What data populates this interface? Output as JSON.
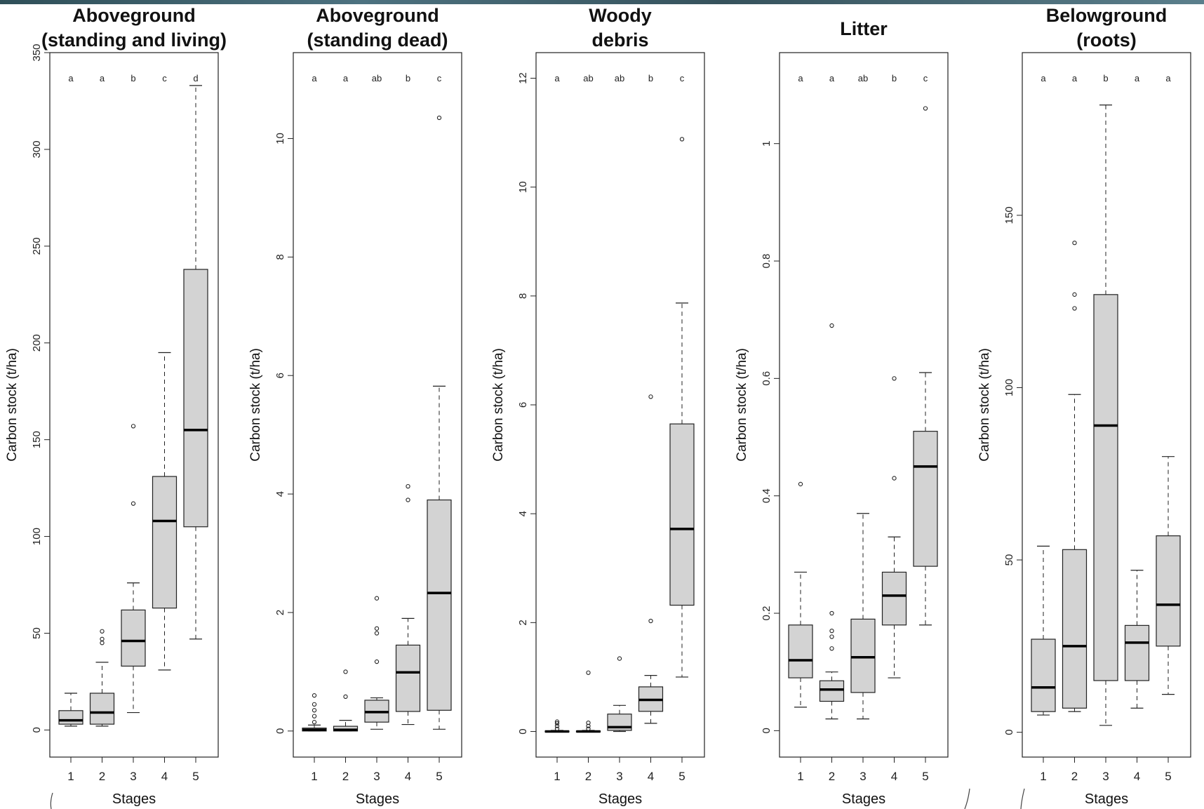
{
  "chart_data": [
    {
      "type": "box",
      "title": "Aboveground\n(standing and living)",
      "xlabel": "Stages",
      "ylabel": "Carbon stock (t/ha)",
      "categories": [
        "1",
        "2",
        "3",
        "4",
        "5"
      ],
      "ylim": [
        -14,
        350
      ],
      "yticks": [
        0,
        50,
        100,
        150,
        200,
        250,
        300,
        350
      ],
      "group_letters": [
        "a",
        "a",
        "b",
        "c",
        "d"
      ],
      "boxes": [
        {
          "whisker_low": 2,
          "q1": 3,
          "median": 5,
          "q3": 10,
          "whisker_high": 19,
          "outliers": []
        },
        {
          "whisker_low": 2,
          "q1": 3,
          "median": 9,
          "q3": 19,
          "whisker_high": 35,
          "outliers": [
            45,
            47,
            51
          ]
        },
        {
          "whisker_low": 9,
          "q1": 33,
          "median": 46,
          "q3": 62,
          "whisker_high": 76,
          "outliers": [
            117,
            157
          ]
        },
        {
          "whisker_low": 31,
          "q1": 63,
          "median": 108,
          "q3": 131,
          "whisker_high": 195,
          "outliers": []
        },
        {
          "whisker_low": 47,
          "q1": 105,
          "median": 155,
          "q3": 238,
          "whisker_high": 333,
          "outliers": []
        }
      ]
    },
    {
      "type": "box",
      "title": "Aboveground\n(standing dead)",
      "xlabel": "Stages",
      "ylabel": "Carbon stock (t/ha)",
      "categories": [
        "1",
        "2",
        "3",
        "4",
        "5"
      ],
      "ylim": [
        -0.44,
        11.45
      ],
      "yticks": [
        0,
        2,
        4,
        6,
        8,
        10
      ],
      "group_letters": [
        "a",
        "a",
        "ab",
        "b",
        "c"
      ],
      "boxes": [
        {
          "whisker_low": 0,
          "q1": 0.0,
          "median": 0.02,
          "q3": 0.05,
          "whisker_high": 0.1,
          "outliers": [
            0.15,
            0.25,
            0.35,
            0.45,
            0.6
          ]
        },
        {
          "whisker_low": 0,
          "q1": 0.0,
          "median": 0.02,
          "q3": 0.08,
          "whisker_high": 0.18,
          "outliers": [
            0.58,
            1.0
          ]
        },
        {
          "whisker_low": 0.03,
          "q1": 0.15,
          "median": 0.32,
          "q3": 0.52,
          "whisker_high": 0.56,
          "outliers": [
            1.17,
            1.65,
            1.73,
            2.24
          ]
        },
        {
          "whisker_low": 0.11,
          "q1": 0.33,
          "median": 0.99,
          "q3": 1.45,
          "whisker_high": 1.9,
          "outliers": [
            3.9,
            4.13
          ]
        },
        {
          "whisker_low": 0.03,
          "q1": 0.35,
          "median": 2.33,
          "q3": 3.9,
          "whisker_high": 5.82,
          "outliers": [
            10.35
          ]
        }
      ]
    },
    {
      "type": "box",
      "title": "Woody\ndebris",
      "xlabel": "Stages",
      "ylabel": "Carbon stock (t/ha)",
      "categories": [
        "1",
        "2",
        "3",
        "4",
        "5"
      ],
      "ylim": [
        -0.47,
        12.47
      ],
      "yticks": [
        0,
        2,
        4,
        6,
        8,
        10,
        12
      ],
      "group_letters": [
        "a",
        "ab",
        "ab",
        "b",
        "c"
      ],
      "boxes": [
        {
          "whisker_low": 0,
          "q1": 0.0,
          "median": 0.0,
          "q3": 0.01,
          "whisker_high": 0.02,
          "outliers": [
            0.05,
            0.1,
            0.15,
            0.18
          ]
        },
        {
          "whisker_low": 0,
          "q1": 0.0,
          "median": 0.0,
          "q3": 0.01,
          "whisker_high": 0.02,
          "outliers": [
            0.05,
            0.1,
            0.16,
            1.08
          ]
        },
        {
          "whisker_low": 0,
          "q1": 0.02,
          "median": 0.08,
          "q3": 0.32,
          "whisker_high": 0.48,
          "outliers": [
            1.34
          ]
        },
        {
          "whisker_low": 0.15,
          "q1": 0.37,
          "median": 0.58,
          "q3": 0.82,
          "whisker_high": 1.03,
          "outliers": [
            2.03,
            6.15
          ]
        },
        {
          "whisker_low": 1.0,
          "q1": 2.32,
          "median": 3.72,
          "q3": 5.65,
          "whisker_high": 7.87,
          "outliers": [
            10.88
          ]
        }
      ]
    },
    {
      "type": "box",
      "title": "Litter",
      "xlabel": "Stages",
      "ylabel": "Carbon stock (t/ha)",
      "categories": [
        "1",
        "2",
        "3",
        "4",
        "5"
      ],
      "ylim": [
        -0.045,
        1.155
      ],
      "yticks": [
        0.0,
        0.2,
        0.4,
        0.6,
        0.8,
        1.0
      ],
      "group_letters": [
        "a",
        "a",
        "ab",
        "b",
        "c"
      ],
      "boxes": [
        {
          "whisker_low": 0.04,
          "q1": 0.09,
          "median": 0.12,
          "q3": 0.18,
          "whisker_high": 0.27,
          "outliers": [
            0.42
          ]
        },
        {
          "whisker_low": 0.02,
          "q1": 0.05,
          "median": 0.07,
          "q3": 0.085,
          "whisker_high": 0.1,
          "outliers": [
            0.14,
            0.16,
            0.17,
            0.2,
            0.69
          ]
        },
        {
          "whisker_low": 0.02,
          "q1": 0.065,
          "median": 0.125,
          "q3": 0.19,
          "whisker_high": 0.37,
          "outliers": []
        },
        {
          "whisker_low": 0.09,
          "q1": 0.18,
          "median": 0.23,
          "q3": 0.27,
          "whisker_high": 0.33,
          "outliers": [
            0.43,
            0.6
          ]
        },
        {
          "whisker_low": 0.18,
          "q1": 0.28,
          "median": 0.45,
          "q3": 0.51,
          "whisker_high": 0.61,
          "outliers": [
            1.06
          ]
        }
      ]
    },
    {
      "type": "box",
      "title": "Belowground\n(roots)",
      "xlabel": "Stages",
      "ylabel": "Carbon stock (t/ha)",
      "categories": [
        "1",
        "2",
        "3",
        "4",
        "5"
      ],
      "ylim": [
        -7.2,
        197.2
      ],
      "yticks": [
        0,
        50,
        100,
        150
      ],
      "group_letters": [
        "a",
        "a",
        "b",
        "a",
        "a"
      ],
      "boxes": [
        {
          "whisker_low": 5,
          "q1": 6,
          "median": 13,
          "q3": 27,
          "whisker_high": 54,
          "outliers": []
        },
        {
          "whisker_low": 6,
          "q1": 7,
          "median": 25,
          "q3": 53,
          "whisker_high": 98,
          "outliers": [
            123,
            127,
            142
          ]
        },
        {
          "whisker_low": 2,
          "q1": 15,
          "median": 89,
          "q3": 127,
          "whisker_high": 182,
          "outliers": []
        },
        {
          "whisker_low": 7,
          "q1": 15,
          "median": 26,
          "q3": 31,
          "whisker_high": 47,
          "outliers": []
        },
        {
          "whisker_low": 11,
          "q1": 25,
          "median": 37,
          "q3": 57,
          "whisker_high": 80,
          "outliers": []
        }
      ]
    }
  ]
}
